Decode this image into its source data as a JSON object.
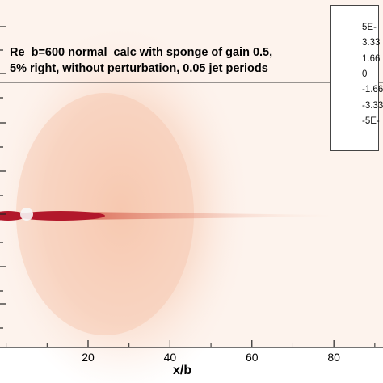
{
  "chart_data": {
    "type": "heatmap",
    "title_lines": [
      "Re_b=600 normal_calc with sponge of gain 0.5,",
      "5% right, without perturbation, 0.05 jet periods"
    ],
    "xlabel": "x/b",
    "ylabel": "",
    "xlim": [
      -1.5,
      92
    ],
    "x_ticks": [
      20,
      40,
      60,
      80
    ],
    "x_tick_labels": [
      "20",
      "40",
      "60",
      "80"
    ],
    "colorbar": {
      "labels": [
        "5E-",
        "3.33",
        "1.66",
        "0",
        "-1.66",
        "-3.33",
        "-5E-"
      ],
      "colors": [
        "#b2182b",
        "#ef8a62",
        "#fddbc7",
        "#f7f7f7",
        "#d1e5f0",
        "#67a9cf",
        "#2166ac"
      ]
    },
    "colors": {
      "jet": "#b2182b",
      "background_field": "#fdf1ea",
      "plume": "#f8d2be"
    }
  }
}
